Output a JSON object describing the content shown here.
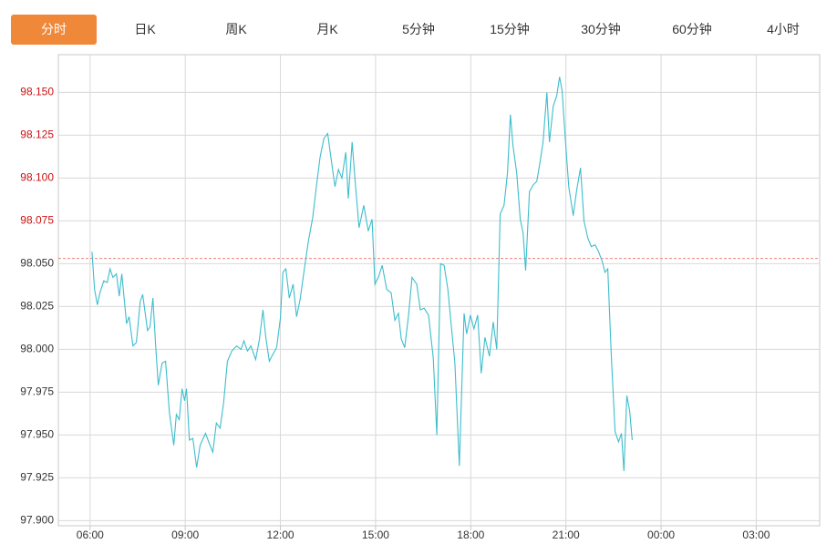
{
  "tabs": {
    "items": [
      "分时",
      "日K",
      "周K",
      "月K",
      "5分钟",
      "15分钟",
      "30分钟",
      "60分钟",
      "4小时"
    ],
    "active": 0,
    "active_color": "#f0883a"
  },
  "chart_data": {
    "type": "line",
    "x": [
      6.06,
      6.14,
      6.23,
      6.31,
      6.43,
      6.54,
      6.63,
      6.72,
      6.83,
      6.92,
      7.0,
      7.15,
      7.23,
      7.35,
      7.46,
      7.58,
      7.66,
      7.81,
      7.89,
      7.98,
      8.06,
      8.15,
      8.27,
      8.38,
      8.5,
      8.64,
      8.72,
      8.81,
      8.9,
      8.98,
      9.04,
      9.13,
      9.24,
      9.36,
      9.47,
      9.64,
      9.76,
      9.87,
      9.98,
      10.1,
      10.21,
      10.33,
      10.47,
      10.62,
      10.76,
      10.85,
      10.96,
      11.07,
      11.22,
      11.34,
      11.45,
      11.54,
      11.65,
      11.76,
      11.88,
      12.0,
      12.08,
      12.17,
      12.28,
      12.4,
      12.51,
      12.62,
      12.74,
      12.88,
      13.02,
      13.14,
      13.25,
      13.37,
      13.49,
      13.6,
      13.72,
      13.83,
      13.94,
      14.06,
      14.14,
      14.26,
      14.37,
      14.48,
      14.63,
      14.77,
      14.89,
      14.98,
      15.09,
      15.21,
      15.35,
      15.49,
      15.61,
      15.72,
      15.81,
      15.92,
      16.04,
      16.15,
      16.3,
      16.41,
      16.53,
      16.67,
      16.82,
      16.93,
      17.05,
      17.16,
      17.28,
      17.39,
      17.5,
      17.64,
      17.79,
      17.87,
      17.99,
      18.1,
      18.22,
      18.33,
      18.45,
      18.59,
      18.71,
      18.82,
      18.93,
      19.05,
      19.16,
      19.25,
      19.33,
      19.45,
      19.56,
      19.65,
      19.73,
      19.85,
      19.97,
      20.08,
      20.19,
      20.28,
      20.4,
      20.48,
      20.6,
      20.71,
      20.8,
      20.88,
      20.97,
      21.09,
      21.23,
      21.34,
      21.46,
      21.57,
      21.69,
      21.8,
      21.92,
      22.03,
      22.15,
      22.23,
      22.32,
      22.43,
      22.55,
      22.66,
      22.75,
      22.83,
      22.92,
      23.01,
      23.09
    ],
    "series": [
      {
        "color": "#3dbdcc",
        "values": [
          98.057,
          98.035,
          98.026,
          98.033,
          98.04,
          98.039,
          98.047,
          98.042,
          98.044,
          98.031,
          98.044,
          98.015,
          98.019,
          98.002,
          98.004,
          98.028,
          98.032,
          98.011,
          98.013,
          98.03,
          98.004,
          97.979,
          97.992,
          97.993,
          97.963,
          97.944,
          97.962,
          97.959,
          97.977,
          97.97,
          97.977,
          97.947,
          97.948,
          97.931,
          97.944,
          97.951,
          97.945,
          97.94,
          97.957,
          97.954,
          97.969,
          97.993,
          97.999,
          98.002,
          98.0,
          98.005,
          97.999,
          98.002,
          97.994,
          98.006,
          98.023,
          98.007,
          97.993,
          97.997,
          98.001,
          98.018,
          98.045,
          98.047,
          98.03,
          98.038,
          98.019,
          98.029,
          98.045,
          98.063,
          98.077,
          98.096,
          98.112,
          98.123,
          98.126,
          98.111,
          98.095,
          98.105,
          98.1,
          98.115,
          98.088,
          98.121,
          98.095,
          98.071,
          98.084,
          98.069,
          98.076,
          98.038,
          98.042,
          98.049,
          98.035,
          98.033,
          98.017,
          98.021,
          98.006,
          98.001,
          98.02,
          98.042,
          98.038,
          98.023,
          98.024,
          98.02,
          97.995,
          97.95,
          98.05,
          98.049,
          98.035,
          98.013,
          97.992,
          97.932,
          98.021,
          98.009,
          98.02,
          98.012,
          98.02,
          97.986,
          98.007,
          97.996,
          98.016,
          98.0,
          98.079,
          98.084,
          98.103,
          98.137,
          98.119,
          98.103,
          98.076,
          98.068,
          98.046,
          98.092,
          98.096,
          98.098,
          98.11,
          98.121,
          98.15,
          98.121,
          98.142,
          98.148,
          98.159,
          98.151,
          98.126,
          98.095,
          98.078,
          98.093,
          98.106,
          98.075,
          98.065,
          98.06,
          98.061,
          98.057,
          98.051,
          98.045,
          98.047,
          97.997,
          97.952,
          97.946,
          97.951,
          97.929,
          97.973,
          97.964,
          97.947
        ]
      }
    ],
    "xlim": [
      5,
      29
    ],
    "xticks": [
      {
        "value": 6,
        "label": "06:00"
      },
      {
        "value": 9,
        "label": "09:00"
      },
      {
        "value": 12,
        "label": "12:00"
      },
      {
        "value": 15,
        "label": "15:00"
      },
      {
        "value": 18,
        "label": "18:00"
      },
      {
        "value": 21,
        "label": "21:00"
      },
      {
        "value": 24,
        "label": "00:00"
      },
      {
        "value": 27,
        "label": "03:00"
      }
    ],
    "ylim": [
      97.897,
      98.172
    ],
    "yticks": [
      {
        "value": 97.9,
        "label": "97.900"
      },
      97.925,
      {
        "value": 97.95,
        "label": "97.950"
      },
      97.975,
      {
        "value": 98.0,
        "label": "98.000"
      },
      98.025,
      {
        "value": 98.05,
        "label": "98.050"
      },
      98.075,
      {
        "value": 98.1,
        "label": "98.100"
      },
      98.125,
      {
        "value": 98.15,
        "label": "98.150"
      }
    ],
    "reference_line": {
      "value": 98.053,
      "color": "#e8534a"
    },
    "tick_color_above": "#cc1111",
    "tick_color_below": "#333333",
    "grid": true
  }
}
